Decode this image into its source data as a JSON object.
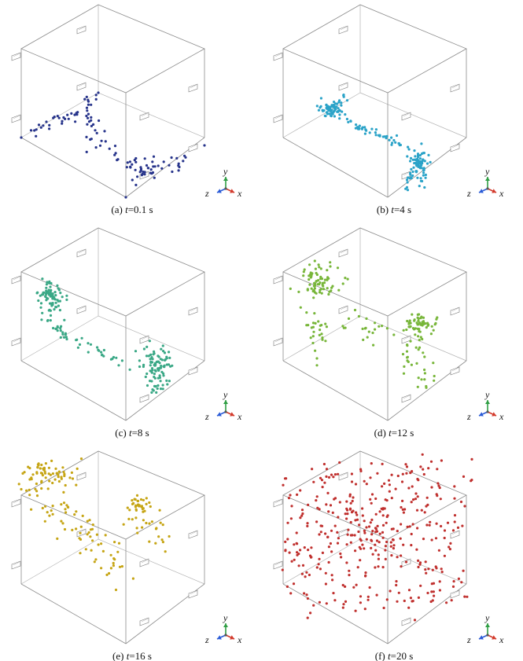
{
  "figure": {
    "panels": [
      {
        "caption_prefix": "(a) ",
        "caption_var": "t",
        "caption_value": "=0.1 s",
        "particle_color": "#27348b"
      },
      {
        "caption_prefix": "(b) ",
        "caption_var": "t",
        "caption_value": "=4 s",
        "particle_color": "#2ba3c8"
      },
      {
        "caption_prefix": "(c) ",
        "caption_var": "t",
        "caption_value": "=8 s",
        "particle_color": "#3aa886"
      },
      {
        "caption_prefix": "(d) ",
        "caption_var": "t",
        "caption_value": "=12 s",
        "particle_color": "#78b63a"
      },
      {
        "caption_prefix": "(e) ",
        "caption_var": "t",
        "caption_value": "=16 s",
        "particle_color": "#c6a515"
      },
      {
        "caption_prefix": "(f) ",
        "caption_var": "t",
        "caption_value": "=20 s",
        "particle_color": "#c0302e"
      }
    ],
    "axis_triad": {
      "x_label": "x",
      "y_label": "y",
      "z_label": "z",
      "x_color": "#d33a2c",
      "y_color": "#2f9e44",
      "z_color": "#2a5bd7"
    }
  }
}
